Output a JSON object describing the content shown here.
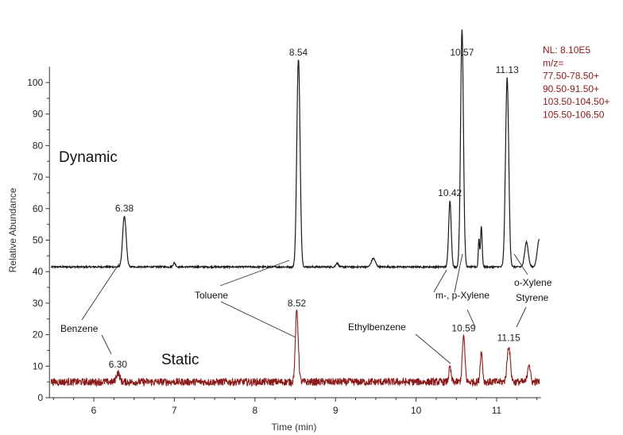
{
  "chart_data": {
    "type": "line",
    "xlabel": "Time (min)",
    "ylabel": "Relative Abundance",
    "xlim": [
      5.45,
      11.55
    ],
    "ylim": [
      0,
      105
    ],
    "x_ticks": [
      "6",
      "7",
      "8",
      "9",
      "10",
      "11"
    ],
    "y_ticks": [
      "0",
      "10",
      "20",
      "30",
      "40",
      "50",
      "60",
      "70",
      "80",
      "90",
      "100"
    ],
    "series": [
      {
        "name": "Dynamic",
        "color": "#1a1a1a",
        "baseline": 41.5,
        "peaks": [
          {
            "x": 6.38,
            "y": 57.5,
            "w": 0.022
          },
          {
            "x": 7.0,
            "y": 42.8,
            "w": 0.015
          },
          {
            "x": 8.54,
            "y": 107.5,
            "w": 0.02
          },
          {
            "x": 9.02,
            "y": 42.8,
            "w": 0.015
          },
          {
            "x": 9.47,
            "y": 44.2,
            "w": 0.025
          },
          {
            "x": 10.42,
            "y": 62.5,
            "w": 0.016
          },
          {
            "x": 10.57,
            "y": 117.0,
            "w": 0.018
          },
          {
            "x": 10.78,
            "y": 50.5,
            "w": 0.008
          },
          {
            "x": 10.81,
            "y": 54.5,
            "w": 0.01
          },
          {
            "x": 11.13,
            "y": 101.5,
            "w": 0.02
          },
          {
            "x": 11.37,
            "y": 49.5,
            "w": 0.022
          },
          {
            "x": 11.53,
            "y": 50.5,
            "w": 0.025
          }
        ],
        "labels": [
          {
            "x": 6.38,
            "text": "6.38"
          },
          {
            "x": 8.54,
            "text": "8.54"
          },
          {
            "x": 10.42,
            "text": "10.42"
          },
          {
            "x": 10.57,
            "text": "10.57"
          },
          {
            "x": 11.13,
            "text": "11.13"
          }
        ]
      },
      {
        "name": "Static",
        "color": "#8b1a1a",
        "baseline": 5.0,
        "peaks": [
          {
            "x": 6.3,
            "y": 8.0,
            "w": 0.02
          },
          {
            "x": 8.52,
            "y": 27.5,
            "w": 0.018
          },
          {
            "x": 10.42,
            "y": 9.5,
            "w": 0.014
          },
          {
            "x": 10.59,
            "y": 19.5,
            "w": 0.016
          },
          {
            "x": 10.81,
            "y": 14.5,
            "w": 0.014
          },
          {
            "x": 11.15,
            "y": 16.5,
            "w": 0.02
          },
          {
            "x": 11.4,
            "y": 11.0,
            "w": 0.016
          }
        ],
        "labels": [
          {
            "x": 6.3,
            "text": "6.30"
          },
          {
            "x": 8.52,
            "text": "8.52"
          },
          {
            "x": 10.59,
            "text": "10.59"
          },
          {
            "x": 11.15,
            "text": "11.15"
          }
        ]
      }
    ],
    "compounds": [
      {
        "name": "Benzene",
        "dynamic_x": 6.38,
        "static_x": 6.3
      },
      {
        "name": "Toluene",
        "dynamic_x": 8.54,
        "static_x": 8.52
      },
      {
        "name": "Ethylbenzene",
        "dynamic_x": 10.42,
        "static_x": 10.42
      },
      {
        "name": "m-, p-Xylene",
        "dynamic_x": 10.57,
        "static_x": 10.59
      },
      {
        "name": "o-Xylene Styrene",
        "dynamic_x": 11.13,
        "static_x": 11.15
      }
    ],
    "annotation": {
      "color": "#8b1a1a",
      "lines": [
        "NL: 8.10E5",
        "m/z=",
        "77.50-78.50+",
        "90.50-91.50+",
        "103.50-104.50+",
        "105.50-106.50"
      ]
    }
  },
  "labels": {
    "dynamic": "Dynamic",
    "static": "Static",
    "benzene": "Benzene",
    "toluene": "Toluene",
    "ethylbenzene": "Ethylbenzene",
    "xylene_mp": "m-, p-Xylene",
    "oxylene": "o-Xylene",
    "styrene": "Styrene"
  }
}
